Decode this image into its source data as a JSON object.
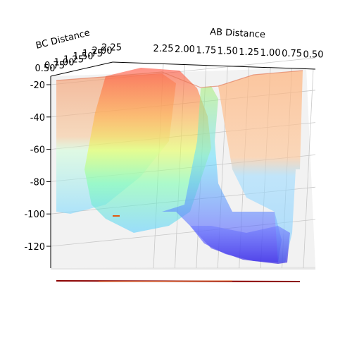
{
  "chart_data": {
    "type": "surface3d",
    "x_axis": {
      "label": "AB Distance",
      "ticks": [
        "2.25",
        "2.00",
        "1.75",
        "1.50",
        "1.25",
        "1.00",
        "0.75",
        "0.50"
      ]
    },
    "y_axis": {
      "label": "BC Distance",
      "ticks": [
        "0.50",
        "0.75",
        "1.00",
        "1.25",
        "1.50",
        "1.75",
        "2.00",
        "2.25"
      ]
    },
    "z_axis": {
      "label": "",
      "ticks": [
        "-20",
        "-40",
        "-60",
        "-80",
        "-100",
        "-120"
      ],
      "range": [
        -135,
        -20
      ]
    },
    "grid": true,
    "colormap": "jet",
    "surface_alpha": 0.5,
    "contour_below": true,
    "view": "front, slightly elevated"
  },
  "colors": {
    "low": "#4a3aff",
    "mid": "#5fe0ff",
    "midhigh": "#e8ff5a",
    "high": "#ff3a2a",
    "pane": "#f2f2f2",
    "grid": "#b0b0b0",
    "contour": "#8b0000"
  }
}
